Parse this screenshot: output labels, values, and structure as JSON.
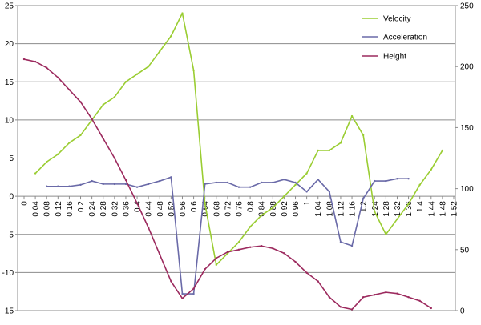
{
  "chart_data": {
    "type": "line",
    "title": "",
    "xlabel": "",
    "ylabel": "",
    "x": [
      "0",
      "0.04",
      "0.08",
      "0.12",
      "0.16",
      "0.2",
      "0.24",
      "0.28",
      "0.32",
      "0.36",
      "0.4",
      "0.44",
      "0.48",
      "0.52",
      "0.56",
      "0.6",
      "0.64",
      "0.68",
      "0.72",
      "0.76",
      "0.8",
      "0.84",
      "0.88",
      "0.92",
      "0.96",
      "1",
      "1.04",
      "1.08",
      "1.12",
      "1.16",
      "1.2",
      "1.24",
      "1.28",
      "1.32",
      "1.36",
      "1.4",
      "1.44",
      "1.48",
      "1.52"
    ],
    "ylim": [
      -15,
      25
    ],
    "y_ticks": [
      -15,
      -10,
      -5,
      0,
      5,
      10,
      15,
      20,
      25
    ],
    "y2lim": [
      0,
      250
    ],
    "y2_ticks": [
      0,
      50,
      100,
      150,
      200,
      250
    ],
    "gridlines": [
      25,
      20,
      15,
      10,
      5,
      -5,
      -10,
      -15
    ],
    "legend_position": "top-right",
    "series": [
      {
        "name": "Velocity",
        "axis": "left",
        "color": "#9acd32",
        "values": [
          null,
          3,
          4.5,
          5.5,
          7,
          8,
          10,
          12,
          13,
          15,
          16,
          17,
          19,
          21,
          24,
          16.5,
          -1,
          -9,
          -7.5,
          -6,
          -4,
          -2.5,
          -1.5,
          0,
          1.5,
          3,
          6,
          6,
          7,
          10.5,
          8,
          -2,
          -5,
          -3,
          -1,
          1.5,
          3.5,
          6,
          null
        ]
      },
      {
        "name": "Acceleration",
        "axis": "left",
        "color": "#6a6aa8",
        "values": [
          null,
          null,
          1.3,
          1.3,
          1.3,
          1.5,
          2,
          1.6,
          1.6,
          1.6,
          1.2,
          1.6,
          2,
          2.5,
          -12.8,
          -12.8,
          1.6,
          1.8,
          1.8,
          1.2,
          1.2,
          1.8,
          1.8,
          2.2,
          1.8,
          0.6,
          2.2,
          0.6,
          -6,
          -6.5,
          -0.3,
          2,
          2,
          2.3,
          2.3,
          null,
          null,
          null,
          null
        ]
      },
      {
        "name": "Height",
        "axis": "right",
        "color": "#9c2a5e",
        "values": [
          206,
          204,
          199,
          191,
          181,
          171,
          157,
          141,
          125,
          107,
          88,
          68,
          46,
          24,
          10,
          18,
          34,
          43,
          48,
          50,
          52,
          53,
          51,
          47,
          40,
          31,
          24,
          11,
          3,
          1,
          11,
          13,
          15,
          14,
          11,
          8,
          2,
          null,
          null
        ]
      }
    ]
  }
}
